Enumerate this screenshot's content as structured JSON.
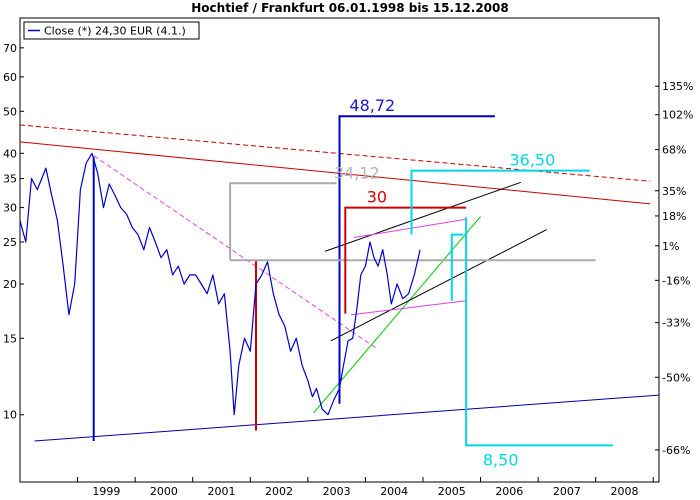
{
  "chart_data": {
    "type": "line",
    "title": "Hochtief / Frankfurt 06.01.1998  bis 15.12.2008",
    "legend": {
      "label": "Close (*) 24,30 EUR (4.1.)",
      "color": "#0000cc",
      "placement": "top-left"
    },
    "x_ticks": [
      "1999",
      "2000",
      "2001",
      "2002",
      "2003",
      "2004",
      "2005",
      "2006",
      "2007",
      "2008"
    ],
    "y_left_ticks": [
      {
        "label": "70",
        "value": 70
      },
      {
        "label": "60",
        "value": 60
      },
      {
        "label": "50",
        "value": 50
      },
      {
        "label": "40",
        "value": 40
      },
      {
        "label": "35",
        "value": 35
      },
      {
        "label": "30",
        "value": 30
      },
      {
        "label": "25",
        "value": 25
      },
      {
        "label": "20",
        "value": 20
      },
      {
        "label": "15",
        "value": 15
      },
      {
        "label": "10",
        "value": 10
      }
    ],
    "y_right_ticks": [
      {
        "label": "135%",
        "value": 57.1
      },
      {
        "label": "102%",
        "value": 49.1
      },
      {
        "label": "68%",
        "value": 40.8
      },
      {
        "label": "35%",
        "value": 32.8
      },
      {
        "label": "18%",
        "value": 28.7
      },
      {
        "label": "1%",
        "value": 24.5
      },
      {
        "label": "-16%",
        "value": 20.4
      },
      {
        "label": "-33%",
        "value": 16.3
      },
      {
        "label": "-50%",
        "value": 12.2
      },
      {
        "label": "-66%",
        "value": 8.3
      }
    ],
    "y_scale": "log",
    "ylim": [
      7,
      82
    ],
    "xlim": [
      1998.0,
      2009.1
    ],
    "grid": false,
    "series": [
      {
        "color": "#0000cc",
        "x": [
          1998.0,
          1998.1,
          1998.2,
          1998.3,
          1998.45,
          1998.55,
          1998.65,
          1998.75,
          1998.85,
          1998.95,
          1999.05,
          1999.15,
          1999.25,
          1999.35,
          1999.45,
          1999.55,
          1999.65,
          1999.75,
          1999.85,
          1999.95,
          2000.05,
          2000.15,
          2000.25,
          2000.35,
          2000.45,
          2000.55,
          2000.65,
          2000.75,
          2000.85,
          2000.95,
          2001.05,
          2001.15,
          2001.25,
          2001.35,
          2001.45,
          2001.55,
          2001.65,
          2001.72,
          2001.8,
          2001.9,
          2002.0,
          2002.1,
          2002.2,
          2002.3,
          2002.4,
          2002.5,
          2002.6,
          2002.7,
          2002.8,
          2002.9,
          2003.0,
          2003.08,
          2003.15,
          2003.25,
          2003.35,
          2003.45,
          2003.55,
          2003.62,
          2003.7,
          2003.78,
          2003.85,
          2003.92,
          2004.0,
          2004.08,
          2004.15,
          2004.22,
          2004.3,
          2004.38,
          2004.45,
          2004.55,
          2004.65,
          2004.75,
          2004.85,
          2004.95
        ],
        "y": [
          28,
          25,
          35,
          33,
          37,
          32,
          28,
          22,
          17,
          20,
          33,
          38,
          40,
          36,
          30,
          34,
          32,
          30,
          29,
          27,
          26,
          24,
          27,
          25,
          23,
          24,
          21,
          22,
          20,
          21,
          21,
          20,
          19,
          21,
          18,
          19,
          14,
          10,
          13,
          15,
          14,
          20,
          21,
          22.5,
          19,
          17,
          16,
          14,
          15,
          13,
          12,
          11,
          11.5,
          10.3,
          10,
          10.8,
          11.5,
          13,
          14.8,
          15,
          17.5,
          21,
          22,
          25,
          23,
          22,
          24,
          21,
          18,
          20,
          18.5,
          19,
          21,
          24
        ]
      }
    ],
    "annotations": [
      {
        "text": "48,72",
        "value": 48.72,
        "color": "#1a1acc"
      },
      {
        "text": "34,12",
        "value": 34.12,
        "color": "#b4b4b4"
      },
      {
        "text": "30",
        "value": 30,
        "color": "#dd0000"
      },
      {
        "text": "36,50",
        "value": 36.5,
        "color": "#00d8e8"
      },
      {
        "text": "8,50",
        "value": 8.5,
        "color": "#00d8e8"
      }
    ],
    "overlays": [
      {
        "kind": "line",
        "color": "#0000aa",
        "dash": false,
        "x1": 1998.25,
        "y1": 8.7,
        "x2": 2009.1,
        "y2": 11.1
      },
      {
        "kind": "line",
        "color": "#cc0000",
        "dash": false,
        "x1": 1998.0,
        "y1": 42.5,
        "x2": 2008.95,
        "y2": 30.6
      },
      {
        "kind": "line",
        "color": "#cc0000",
        "dash": true,
        "x1": 1998.0,
        "y1": 46.5,
        "x2": 2008.95,
        "y2": 34.5
      },
      {
        "kind": "line",
        "color": "#ee44ee",
        "dash": true,
        "x1": 1999.28,
        "y1": 39.5,
        "x2": 2004.2,
        "y2": 14.2
      },
      {
        "kind": "line",
        "color": "#00cc00",
        "dash": false,
        "x1": 2003.1,
        "y1": 10.1,
        "x2": 2006.0,
        "y2": 28.6
      },
      {
        "kind": "line",
        "color": "#000000",
        "dash": false,
        "x1": 2003.3,
        "y1": 23.8,
        "x2": 2006.7,
        "y2": 34.3
      },
      {
        "kind": "line",
        "color": "#000000",
        "dash": false,
        "x1": 2003.4,
        "y1": 14.8,
        "x2": 2007.15,
        "y2": 26.7
      },
      {
        "kind": "line",
        "color": "#dd44dd",
        "dash": false,
        "x1": 2003.8,
        "y1": 25.6,
        "x2": 2005.75,
        "y2": 28.2
      },
      {
        "kind": "line",
        "color": "#dd44dd",
        "dash": false,
        "x1": 2003.75,
        "y1": 17.0,
        "x2": 2005.75,
        "y2": 18.3
      },
      {
        "kind": "path",
        "color": "#0000cc",
        "points": [
          [
            1999.28,
            8.7
          ],
          [
            1999.28,
            39.2
          ]
        ]
      },
      {
        "kind": "path",
        "color": "#cc0000",
        "points": [
          [
            2002.1,
            9.2
          ],
          [
            2002.1,
            22.6
          ]
        ]
      },
      {
        "kind": "path",
        "color": "#0000cc",
        "points": [
          [
            2003.55,
            10.6
          ],
          [
            2003.55,
            48.72
          ],
          [
            2004.85,
            48.72
          ],
          [
            2005.8,
            48.72
          ],
          [
            2006.25,
            48.72
          ]
        ]
      },
      {
        "kind": "path",
        "color": "#aaaaaa",
        "points": [
          [
            2001.65,
            22.7
          ],
          [
            2001.65,
            34.12
          ],
          [
            2003.5,
            34.12
          ]
        ]
      },
      {
        "kind": "path",
        "color": "#aaaaaa",
        "points": [
          [
            2001.65,
            22.7
          ],
          [
            2008.0,
            22.7
          ]
        ]
      },
      {
        "kind": "path",
        "color": "#cc0000",
        "points": [
          [
            2003.65,
            17.1
          ],
          [
            2003.65,
            30
          ],
          [
            2005.75,
            30
          ]
        ]
      },
      {
        "kind": "path",
        "color": "#00d8e8",
        "points": [
          [
            2004.8,
            26.0
          ],
          [
            2004.8,
            36.5
          ],
          [
            2007.9,
            36.5
          ]
        ]
      },
      {
        "kind": "path",
        "color": "#00d8e8",
        "points": [
          [
            2005.5,
            18.3
          ],
          [
            2005.5,
            26.0
          ],
          [
            2005.7,
            26.0
          ]
        ]
      },
      {
        "kind": "path",
        "color": "#00d8e8",
        "points": [
          [
            2005.75,
            28.5
          ],
          [
            2005.75,
            8.5
          ],
          [
            2008.3,
            8.5
          ]
        ]
      }
    ]
  }
}
